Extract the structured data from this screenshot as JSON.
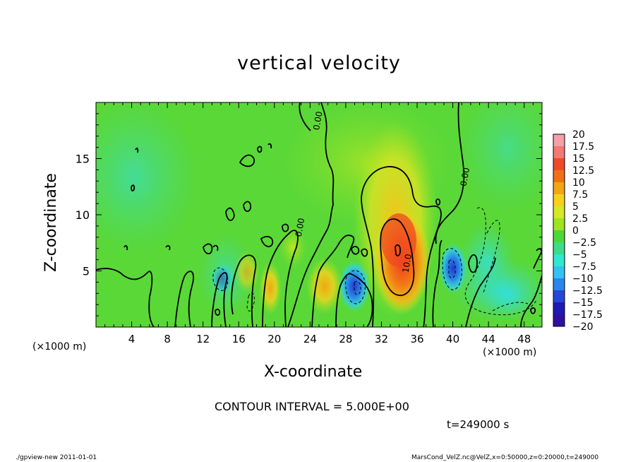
{
  "chart_data": {
    "type": "heatmap",
    "title": "vertical velocity",
    "xlabel": "X-coordinate",
    "ylabel": "Z-coordinate",
    "x_unit_label": "(×1000 m)",
    "x_ticks": [
      4,
      8,
      12,
      16,
      20,
      24,
      28,
      32,
      36,
      40,
      44,
      48
    ],
    "y_ticks": [
      5,
      10,
      15
    ],
    "xlim": [
      0,
      50
    ],
    "ylim": [
      0,
      20
    ],
    "contour_labels": [
      {
        "text": "0.00",
        "x": 25,
        "y": 17.5
      },
      {
        "text": "0.00",
        "x": 23,
        "y": 8
      },
      {
        "text": "0.00",
        "x": 41.5,
        "y": 12.5
      },
      {
        "text": "10.0",
        "x": 35,
        "y": 4.8
      }
    ],
    "colorbar": {
      "levels": [
        20,
        17.5,
        15,
        12.5,
        10,
        7.5,
        5,
        2.5,
        0,
        -2.5,
        -5,
        -7.5,
        -10,
        -12.5,
        -15,
        -17.5,
        -20
      ],
      "labels": [
        "20",
        "17.5",
        "15",
        "12.5",
        "10",
        "7.5",
        "5",
        "2.5",
        "0",
        "−2.5",
        "−5",
        "−7.5",
        "−10",
        "−12.5",
        "−15",
        "−17.5",
        "−20"
      ],
      "colors": [
        "#f4a0a8",
        "#f27a72",
        "#ee4a2a",
        "#f07018",
        "#f2a612",
        "#f6d21e",
        "#d4e826",
        "#9ee420",
        "#4cd838",
        "#3cdc8a",
        "#2ee8d0",
        "#34c2f2",
        "#2a86ec",
        "#2646d8",
        "#2218b4",
        "#3010a0",
        "#7818b8"
      ]
    },
    "features": [
      {
        "kind": "updraft",
        "x": 33.5,
        "z": 6.8,
        "peak": 13
      },
      {
        "kind": "updraft",
        "x": 33,
        "z": 11.5,
        "peak": 5
      },
      {
        "kind": "updraft",
        "x": 19.5,
        "z": 3.5,
        "peak": 8
      },
      {
        "kind": "updraft",
        "x": 25.5,
        "z": 3.5,
        "peak": 7
      },
      {
        "kind": "downdraft",
        "x": 29.5,
        "z": 3.5,
        "peak": -11
      },
      {
        "kind": "downdraft",
        "x": 40,
        "z": 5,
        "peak": -12
      },
      {
        "kind": "downdraft",
        "x": 14,
        "z": 4.5,
        "peak": -5
      }
    ]
  },
  "contour_interval": "CONTOUR INTERVAL = 5.000E+00",
  "time_label": "t=249000 s",
  "footer_left": "./gpview-new   2011-01-01",
  "footer_right": "MarsCond_VelZ.nc@VelZ,x=0:50000,z=0:20000,t=249000"
}
